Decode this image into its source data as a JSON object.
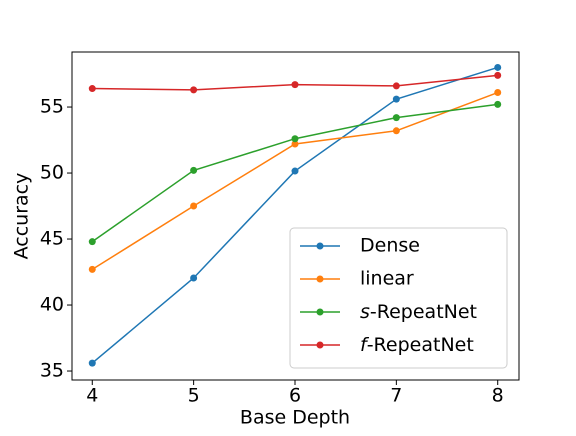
{
  "chart_data": {
    "type": "line",
    "x_label": "Base Depth",
    "y_label": "Accuracy",
    "x": [
      4,
      5,
      6,
      7,
      8
    ],
    "series": [
      {
        "name": "Dense",
        "color": "#1f77b4",
        "values": [
          35.6,
          42.05,
          50.15,
          55.6,
          58.0
        ]
      },
      {
        "name": "linear",
        "color": "#ff7f0e",
        "values": [
          42.7,
          47.5,
          52.2,
          53.2,
          56.1
        ]
      },
      {
        "name": "s-RepeatNet",
        "color": "#2ca02c",
        "values": [
          44.8,
          50.2,
          52.6,
          54.2,
          55.2
        ]
      },
      {
        "name": "f-RepeatNet",
        "color": "#d62728",
        "values": [
          56.4,
          56.3,
          56.7,
          56.6,
          57.4
        ]
      }
    ],
    "xlim": [
      3.8,
      8.21
    ],
    "ylim": [
      34.32,
      59.17
    ],
    "xticks": [
      4,
      5,
      6,
      7,
      8
    ],
    "yticks": [
      35,
      40,
      45,
      50,
      55
    ],
    "legend": "lower right",
    "grid": false
  }
}
